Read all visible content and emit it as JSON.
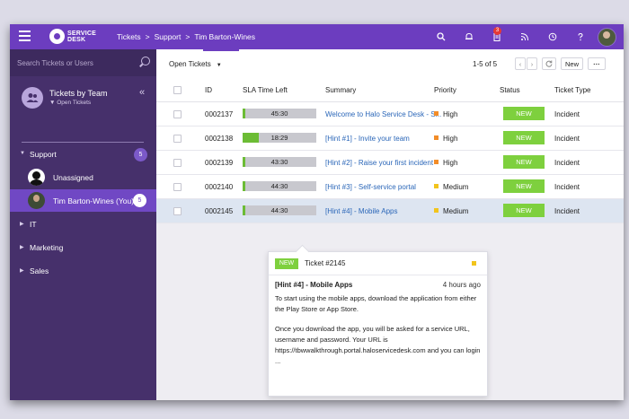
{
  "brand": {
    "logo_text_1": "SERVICE",
    "logo_text_2": "DESK"
  },
  "breadcrumb": [
    "Tickets",
    ">",
    "Support",
    ">",
    "Tim Barton-Wines"
  ],
  "top_icons": {
    "notification_count": "3"
  },
  "sidebar": {
    "search_placeholder": "Search Tickets or Users",
    "team_title": "Tickets by Team",
    "team_subtitle": "Open Tickets",
    "groups": [
      {
        "label": "Support",
        "count": "5"
      },
      {
        "label": "IT"
      },
      {
        "label": "Marketing"
      },
      {
        "label": "Sales"
      }
    ],
    "agents": [
      {
        "name": "Unassigned"
      },
      {
        "name": "Tim Barton-Wines (You)",
        "count": "5"
      }
    ]
  },
  "toolbar": {
    "view_label": "Open Tickets",
    "pager_text": "1-5 of 5",
    "new_label": "New",
    "more_label": "···"
  },
  "table": {
    "headers": [
      "ID",
      "SLA Time Left",
      "Summary",
      "Priority",
      "Status",
      "Ticket Type"
    ],
    "rows": [
      {
        "id": "0002137",
        "sla": "45:30",
        "sla_fill": 0.04,
        "summary": "Welcome to Halo Service Desk - S...",
        "priority": "High",
        "priority_color": "#f28c28",
        "status": "NEW",
        "type": "Incident"
      },
      {
        "id": "0002138",
        "sla": "18:29",
        "sla_fill": 0.22,
        "summary": "[Hint #1] - Invite your team",
        "priority": "High",
        "priority_color": "#f28c28",
        "status": "NEW",
        "type": "Incident"
      },
      {
        "id": "0002139",
        "sla": "43:30",
        "sla_fill": 0.04,
        "summary": "[Hint #2] - Raise your first incident",
        "priority": "High",
        "priority_color": "#f28c28",
        "status": "NEW",
        "type": "Incident"
      },
      {
        "id": "0002140",
        "sla": "44:30",
        "sla_fill": 0.04,
        "summary": "[Hint #3] - Self-service portal",
        "priority": "Medium",
        "priority_color": "#f2c41c",
        "status": "NEW",
        "type": "Incident"
      },
      {
        "id": "0002145",
        "sla": "44:30",
        "sla_fill": 0.04,
        "summary": "[Hint #4] - Mobile Apps",
        "priority": "Medium",
        "priority_color": "#f2c41c",
        "status": "NEW",
        "type": "Incident"
      }
    ]
  },
  "popover": {
    "badge": "NEW",
    "ticket": "Ticket #2145",
    "title": "[Hint #4] - Mobile Apps",
    "time": "4 hours ago",
    "para1": "To start using the mobile apps, download the application from either the Play Store or App Store.",
    "para2": "Once you download the app, you will be asked for a service URL, username and password. Your URL is https://tbwwalkthrough.portal.haloservicedesk.com and you can login ..."
  },
  "colors": {
    "accent": "#6c3dbf",
    "sidebar": "#46306b",
    "new_badge": "#7ed03e",
    "high": "#f28c28",
    "medium": "#f2c41c"
  }
}
